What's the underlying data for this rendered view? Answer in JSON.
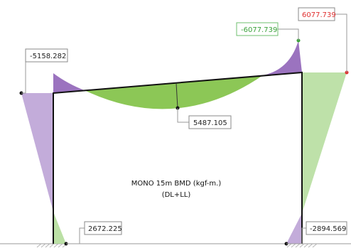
{
  "diagram": {
    "caption_line1": "MONO 15m BMD (kgf-m.)",
    "caption_line2": "(DL+LL)",
    "colors": {
      "negative_fill": "#9b73bf",
      "negative_fill_light": "#bda3d6",
      "positive_fill": "#8cc756",
      "positive_fill_light": "#b7dea0",
      "frame": "#111111",
      "max_label": "#e03030",
      "min_label": "#3aa23a"
    },
    "labels": {
      "left_column_top": "-5158.282",
      "beam_midspan": "5487.105",
      "right_column_top_min": "-6077.739",
      "right_column_top_max": "6077.739",
      "left_column_base": "2672.225",
      "right_column_base": "-2894.569"
    }
  }
}
